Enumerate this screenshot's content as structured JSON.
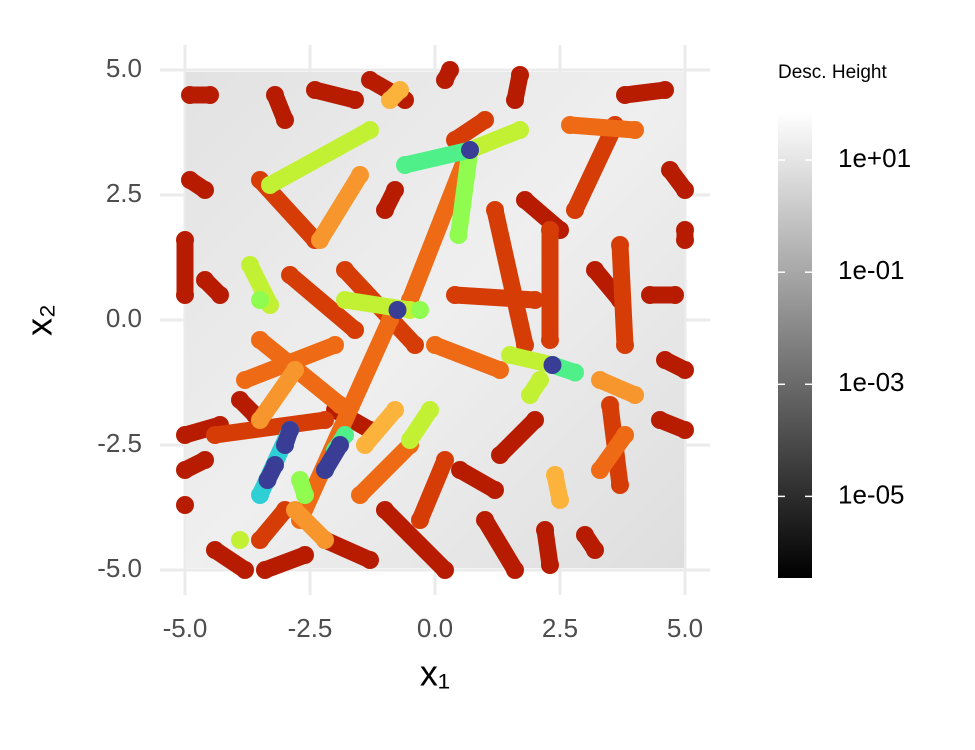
{
  "chart_data": {
    "type": "scatter",
    "xlabel": "x₁",
    "ylabel": "x₂",
    "xlim": [
      -5.5,
      5.5
    ],
    "ylim": [
      -5.5,
      5.5
    ],
    "xticks": [
      {
        "value": -5,
        "label": "-5.0"
      },
      {
        "value": -2.5,
        "label": "-2.5"
      },
      {
        "value": 0,
        "label": "0.0"
      },
      2.5,
      {
        "value": 5,
        "label": "5.0"
      }
    ],
    "yticks": [
      {
        "value": -5,
        "label": "-5.0"
      },
      {
        "value": -2.5,
        "label": "-2.5"
      },
      {
        "value": 0,
        "label": "0.0"
      },
      2.5,
      {
        "value": 5,
        "label": "5.0"
      }
    ],
    "grid": true,
    "colorbar": {
      "title": "Desc. Height",
      "log": true,
      "lim": [
        3.5e-07,
        72
      ],
      "colors": [
        "#000000",
        "#ffffff"
      ],
      "ticks": [
        {
          "value": 1e-05,
          "label": "1e-05"
        },
        {
          "value": 0.001,
          "label": "1e-03"
        },
        {
          "value": 0.1,
          "label": "1e-01"
        },
        {
          "value": 10,
          "label": "1e+01"
        }
      ]
    },
    "series": [
      {
        "color": "#b81c00",
        "x": [
          -4.9,
          -4.5
        ],
        "y": [
          4.5,
          4.5
        ]
      },
      {
        "color": "#b81c00",
        "x": [
          -4.9,
          -4.6
        ],
        "y": [
          2.8,
          2.6
        ]
      },
      {
        "color": "#b81c00",
        "x": [
          -5.0,
          -5.0
        ],
        "y": [
          1.6,
          0.5
        ]
      },
      {
        "color": "#b81c00",
        "x": [
          -4.6,
          -4.3
        ],
        "y": [
          0.8,
          0.5
        ]
      },
      {
        "color": "#b81c00",
        "x": [
          -5.0,
          -4.3
        ],
        "y": [
          -2.3,
          -2.1
        ]
      },
      {
        "color": "#b81c00",
        "x": [
          -5.0,
          -4.6
        ],
        "y": [
          -3.0,
          -2.8
        ]
      },
      {
        "color": "#b81c00",
        "x": [
          -5.0
        ],
        "y": [
          -3.7
        ]
      },
      {
        "color": "#b81c00",
        "x": [
          -4.4,
          -3.8
        ],
        "y": [
          -4.6,
          -5.0
        ]
      },
      {
        "color": "#b81c00",
        "x": [
          -3.4,
          -2.6
        ],
        "y": [
          -5.0,
          -4.7
        ]
      },
      {
        "color": "#b81c00",
        "x": [
          -2.2,
          -1.3
        ],
        "y": [
          -4.4,
          -4.8
        ]
      },
      {
        "color": "#b81c00",
        "x": [
          -1.0,
          0.2
        ],
        "y": [
          -3.8,
          -5.0
        ]
      },
      {
        "color": "#b81c00",
        "x": [
          1.0,
          1.6
        ],
        "y": [
          -4.0,
          -5.0
        ]
      },
      {
        "color": "#b81c00",
        "x": [
          2.2,
          2.3
        ],
        "y": [
          -4.2,
          -4.9
        ]
      },
      {
        "color": "#b81c00",
        "x": [
          3.0,
          3.2
        ],
        "y": [
          -4.3,
          -4.6
        ]
      },
      {
        "color": "#b81c00",
        "x": [
          4.5,
          5.0
        ],
        "y": [
          -2.0,
          -2.2
        ]
      },
      {
        "color": "#b81c00",
        "x": [
          4.6,
          5.0
        ],
        "y": [
          -0.8,
          -1.0
        ]
      },
      {
        "color": "#b81c00",
        "x": [
          4.3,
          4.8
        ],
        "y": [
          0.5,
          0.5
        ]
      },
      {
        "color": "#b81c00",
        "x": [
          5.0,
          5.0
        ],
        "y": [
          1.8,
          1.6
        ]
      },
      {
        "color": "#b81c00",
        "x": [
          4.7,
          5.0
        ],
        "y": [
          3.0,
          2.6
        ]
      },
      {
        "color": "#b81c00",
        "x": [
          3.8,
          4.6
        ],
        "y": [
          4.5,
          4.6
        ]
      },
      {
        "color": "#b81c00",
        "x": [
          0.2,
          0.3
        ],
        "y": [
          4.8,
          5.0
        ]
      },
      {
        "color": "#b81c00",
        "x": [
          1.6,
          1.7
        ],
        "y": [
          4.4,
          4.9
        ]
      },
      {
        "color": "#b81c00",
        "x": [
          -1.6,
          -2.4
        ],
        "y": [
          4.4,
          4.6
        ]
      },
      {
        "color": "#b81c00",
        "x": [
          -3.0,
          -3.2
        ],
        "y": [
          4.0,
          4.5
        ]
      },
      {
        "color": "#b81c00",
        "x": [
          -1.0,
          -0.8
        ],
        "y": [
          2.2,
          2.6
        ]
      },
      {
        "color": "#b81c00",
        "x": [
          1.8,
          2.5
        ],
        "y": [
          2.4,
          1.8
        ]
      },
      {
        "color": "#b81c00",
        "x": [
          3.2,
          3.7
        ],
        "y": [
          1.0,
          0.4
        ]
      },
      {
        "color": "#b81c00",
        "x": [
          -2.0,
          -1.3
        ],
        "y": [
          -1.8,
          -2.2
        ]
      },
      {
        "color": "#b81c00",
        "x": [
          0.5,
          1.2
        ],
        "y": [
          -3.0,
          -3.4
        ]
      },
      {
        "color": "#b81c00",
        "x": [
          -3.9,
          -3.6
        ],
        "y": [
          -1.6,
          -1.9
        ]
      },
      {
        "color": "#b81c00",
        "x": [
          2.0,
          1.3
        ],
        "y": [
          -2.0,
          -2.7
        ]
      },
      {
        "color": "#b81c00",
        "x": [
          -0.6,
          -1.3
        ],
        "y": [
          4.4,
          4.8
        ]
      },
      {
        "color": "#d63c06",
        "x": [
          -3.5,
          -2.4
        ],
        "y": [
          2.8,
          1.6
        ]
      },
      {
        "color": "#d63c06",
        "x": [
          1.2,
          1.8
        ],
        "y": [
          2.2,
          -0.5
        ]
      },
      {
        "color": "#d63c06",
        "x": [
          2.3,
          2.3
        ],
        "y": [
          1.8,
          -0.4
        ]
      },
      {
        "color": "#d63c06",
        "x": [
          -1.8,
          -0.4
        ],
        "y": [
          1.0,
          -0.5
        ]
      },
      {
        "color": "#d63c06",
        "x": [
          0.4,
          2.0
        ],
        "y": [
          0.5,
          0.4
        ]
      },
      {
        "color": "#d63c06",
        "x": [
          3.7,
          3.8
        ],
        "y": [
          1.5,
          -0.5
        ]
      },
      {
        "color": "#d63c06",
        "x": [
          -4.4,
          -2.2
        ],
        "y": [
          -2.3,
          -2.0
        ]
      },
      {
        "color": "#d63c06",
        "x": [
          -3.5,
          -3.0
        ],
        "y": [
          -4.4,
          -3.8
        ]
      },
      {
        "color": "#d63c06",
        "x": [
          3.5,
          3.7
        ],
        "y": [
          -1.7,
          -3.3
        ]
      },
      {
        "color": "#d63c06",
        "x": [
          0.4,
          1.0
        ],
        "y": [
          3.6,
          4.0
        ]
      },
      {
        "color": "#d63c06",
        "x": [
          -0.3,
          0.2
        ],
        "y": [
          -4.0,
          -2.8
        ]
      },
      {
        "color": "#d63c06",
        "x": [
          2.8,
          3.6
        ],
        "y": [
          2.2,
          3.9
        ]
      },
      {
        "color": "#d63c06",
        "x": [
          -2.9,
          -1.6
        ],
        "y": [
          0.9,
          -0.2
        ]
      },
      {
        "color": "#ee6a14",
        "x": [
          0.6,
          -0.5
        ],
        "y": [
          3.2,
          0.4
        ]
      },
      {
        "color": "#ee6a14",
        "x": [
          -0.9,
          -2.7
        ],
        "y": [
          0.0,
          -4.0
        ]
      },
      {
        "color": "#ee6a14",
        "x": [
          -3.8,
          -2.0
        ],
        "y": [
          -1.2,
          -0.5
        ]
      },
      {
        "color": "#ee6a14",
        "x": [
          2.7,
          4.0
        ],
        "y": [
          3.9,
          3.8
        ]
      },
      {
        "color": "#ee6a14",
        "x": [
          -3.5,
          -1.9
        ],
        "y": [
          -0.4,
          -1.7
        ]
      },
      {
        "color": "#ee6a14",
        "x": [
          1.3,
          0.0
        ],
        "y": [
          -1.0,
          -0.5
        ]
      },
      {
        "color": "#ee6a14",
        "x": [
          -0.5,
          -1.5
        ],
        "y": [
          -2.5,
          -3.5
        ]
      },
      {
        "color": "#ee6a14",
        "x": [
          3.8,
          3.3
        ],
        "y": [
          -2.3,
          -3.0
        ]
      },
      {
        "color": "#f8962e",
        "x": [
          -2.3,
          -1.5
        ],
        "y": [
          1.6,
          2.9
        ]
      },
      {
        "color": "#f8962e",
        "x": [
          -3.5,
          -2.8
        ],
        "y": [
          -2.0,
          -1.0
        ]
      },
      {
        "color": "#f8962e",
        "x": [
          3.3,
          4.0
        ],
        "y": [
          -1.2,
          -1.5
        ]
      },
      {
        "color": "#f8962e",
        "x": [
          -2.8,
          -2.2
        ],
        "y": [
          -3.8,
          -4.4
        ]
      },
      {
        "color": "#fbb33c",
        "x": [
          -0.9,
          -0.7
        ],
        "y": [
          4.4,
          4.6
        ]
      },
      {
        "color": "#fbb33c",
        "x": [
          2.4,
          2.5
        ],
        "y": [
          -3.1,
          -3.6
        ]
      },
      {
        "color": "#fbb33c",
        "x": [
          -0.8,
          -1.4
        ],
        "y": [
          -1.8,
          -2.5
        ]
      },
      {
        "color": "#c2f134",
        "x": [
          -1.3,
          -3.3
        ],
        "y": [
          3.8,
          2.7
        ]
      },
      {
        "color": "#c2f134",
        "x": [
          1.7,
          0.7
        ],
        "y": [
          3.8,
          3.4
        ]
      },
      {
        "color": "#c2f134",
        "x": [
          -3.7,
          -3.3
        ],
        "y": [
          1.1,
          0.3
        ]
      },
      {
        "color": "#c2f134",
        "x": [
          1.5,
          2.35
        ],
        "y": [
          -0.7,
          -0.9
        ]
      },
      {
        "color": "#c2f134",
        "x": [
          1.9,
          2.1
        ],
        "y": [
          -1.5,
          -1.2
        ]
      },
      {
        "color": "#c2f134",
        "x": [
          -3.9
        ],
        "y": [
          -4.4
        ]
      },
      {
        "color": "#c2f134",
        "x": [
          -0.1,
          -0.5
        ],
        "y": [
          -1.8,
          -2.4
        ]
      },
      {
        "color": "#c2f134",
        "x": [
          -1.8,
          -0.5
        ],
        "y": [
          0.4,
          0.2
        ]
      },
      {
        "color": "#8ffc4f",
        "x": [
          0.7,
          0.47
        ],
        "y": [
          3.4,
          1.7
        ]
      },
      {
        "color": "#8ffc4f",
        "x": [
          -3.5
        ],
        "y": [
          0.4
        ]
      },
      {
        "color": "#8ffc4f",
        "x": [
          -2.6,
          -2.7
        ],
        "y": [
          -3.5,
          -3.2
        ]
      },
      {
        "color": "#8ffc4f",
        "x": [
          -0.3
        ],
        "y": [
          0.2
        ]
      },
      {
        "color": "#4ff08a",
        "x": [
          -0.6,
          0.7
        ],
        "y": [
          3.1,
          3.4
        ]
      },
      {
        "color": "#4ff08a",
        "x": [
          2.35,
          2.8
        ],
        "y": [
          -0.9,
          -1.05
        ]
      },
      {
        "color": "#4ff08a",
        "x": [
          -1.8,
          -2.0
        ],
        "y": [
          -2.3,
          -2.6
        ]
      },
      {
        "color": "#2fcfd6",
        "x": [
          -3.5,
          -2.9
        ],
        "y": [
          -3.5,
          -2.2
        ]
      },
      {
        "color": "#3a3d95",
        "x": [
          0.7
        ],
        "y": [
          3.4
        ]
      },
      {
        "color": "#3a3d95",
        "x": [
          -0.75
        ],
        "y": [
          0.2
        ]
      },
      {
        "color": "#3a3d95",
        "x": [
          2.35
        ],
        "y": [
          -0.9
        ]
      },
      {
        "color": "#3a3d95",
        "x": [
          -2.9,
          -3.0
        ],
        "y": [
          -2.2,
          -2.5
        ]
      },
      {
        "color": "#3a3d95",
        "x": [
          -3.35,
          -3.2
        ],
        "y": [
          -3.2,
          -2.9
        ]
      },
      {
        "color": "#3a3d95",
        "x": [
          -2.2,
          -1.9
        ],
        "y": [
          -3.0,
          -2.5
        ]
      }
    ]
  }
}
